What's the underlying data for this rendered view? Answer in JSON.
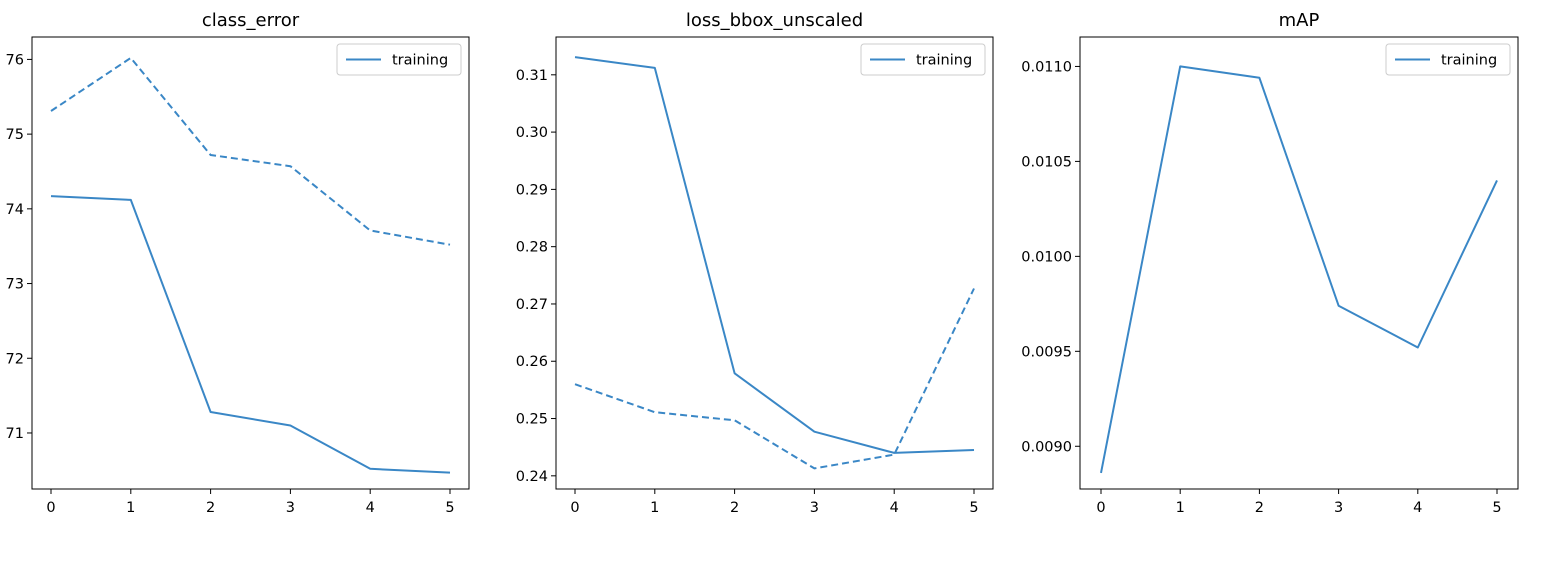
{
  "chart_data": [
    {
      "type": "line",
      "title": "class_error",
      "x": [
        0,
        1,
        2,
        3,
        4,
        5
      ],
      "xticks": [
        "0",
        "1",
        "2",
        "3",
        "4",
        "5"
      ],
      "yticks": [
        71,
        72,
        73,
        74,
        75,
        76
      ],
      "ylim": [
        70.25,
        76.3
      ],
      "series": [
        {
          "name": "training",
          "style": "solid",
          "values": [
            74.17,
            74.12,
            71.28,
            71.1,
            70.52,
            70.47
          ]
        },
        {
          "style": "dashed",
          "values": [
            75.31,
            76.02,
            74.72,
            74.57,
            73.71,
            73.52
          ]
        }
      ],
      "legend": {
        "position": "upper-right",
        "entries": [
          "training"
        ]
      },
      "grid": false
    },
    {
      "type": "line",
      "title": "loss_bbox_unscaled",
      "x": [
        0,
        1,
        2,
        3,
        4,
        5
      ],
      "xticks": [
        "0",
        "1",
        "2",
        "3",
        "4",
        "5"
      ],
      "yticks": [
        0.24,
        0.25,
        0.26,
        0.27,
        0.28,
        0.29,
        0.3,
        0.31
      ],
      "ytick_labels": [
        "0.24",
        "0.25",
        "0.26",
        "0.27",
        "0.28",
        "0.29",
        "0.30",
        "0.31"
      ],
      "ylim": [
        0.2377,
        0.3166
      ],
      "series": [
        {
          "name": "training",
          "style": "solid",
          "values": [
            0.3131,
            0.3112,
            0.2579,
            0.2477,
            0.244,
            0.2445
          ]
        },
        {
          "style": "dashed",
          "values": [
            0.256,
            0.2511,
            0.2497,
            0.2413,
            0.2437,
            0.2727
          ]
        }
      ],
      "legend": {
        "position": "upper-right",
        "entries": [
          "training"
        ]
      },
      "grid": false
    },
    {
      "type": "line",
      "title": "mAP",
      "x": [
        0,
        1,
        2,
        3,
        4,
        5
      ],
      "xticks": [
        "0",
        "1",
        "2",
        "3",
        "4",
        "5"
      ],
      "yticks": [
        0.009,
        0.0095,
        0.01,
        0.0105,
        0.011
      ],
      "ytick_labels": [
        "0.0090",
        "0.0095",
        "0.0100",
        "0.0105",
        "0.0110"
      ],
      "ylim": [
        0.008775,
        0.011155
      ],
      "series": [
        {
          "name": "training",
          "style": "solid",
          "values": [
            0.00886,
            0.011,
            0.01094,
            0.00974,
            0.00952,
            0.0104
          ]
        }
      ],
      "legend": {
        "position": "upper-right",
        "entries": [
          "training"
        ]
      },
      "grid": false
    }
  ],
  "colors": {
    "series": "#3a87c6",
    "frame": "#000000",
    "legend_border": "#cccccc"
  }
}
